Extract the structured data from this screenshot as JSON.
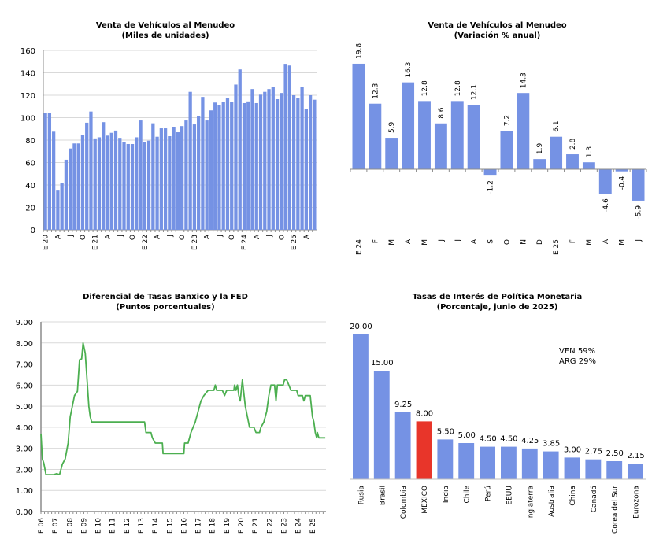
{
  "chart_data": [
    {
      "id": "ventas_nivel",
      "type": "bar",
      "title": "Venta de Vehículos al Menudeo",
      "subtitle": "(Miles de unidades)",
      "xlabel": "",
      "ylabel": "",
      "ylim": [
        0,
        160
      ],
      "yticks": [
        0,
        20,
        40,
        60,
        80,
        100,
        120,
        140,
        160
      ],
      "grid": true,
      "color": "#7592E4",
      "x_tick_labels": [
        {
          "index": 0,
          "label": "E 20"
        },
        {
          "index": 3,
          "label": "A"
        },
        {
          "index": 6,
          "label": "J"
        },
        {
          "index": 9,
          "label": "O"
        },
        {
          "index": 12,
          "label": "E 21"
        },
        {
          "index": 15,
          "label": "A"
        },
        {
          "index": 18,
          "label": "J"
        },
        {
          "index": 21,
          "label": "O"
        },
        {
          "index": 24,
          "label": "E 22"
        },
        {
          "index": 27,
          "label": "A"
        },
        {
          "index": 30,
          "label": "J"
        },
        {
          "index": 33,
          "label": "O"
        },
        {
          "index": 36,
          "label": "E 23"
        },
        {
          "index": 39,
          "label": "A"
        },
        {
          "index": 42,
          "label": "J"
        },
        {
          "index": 45,
          "label": "O"
        },
        {
          "index": 48,
          "label": "E 24"
        },
        {
          "index": 51,
          "label": "A"
        },
        {
          "index": 54,
          "label": "J"
        },
        {
          "index": 57,
          "label": "O"
        },
        {
          "index": 60,
          "label": "E 25"
        },
        {
          "index": 63,
          "label": "A"
        }
      ],
      "values": [
        104.5,
        104,
        87.5,
        35,
        41.5,
        62.5,
        72.5,
        77,
        77,
        84.5,
        95.5,
        105.5,
        81.5,
        82.5,
        96,
        84,
        86.5,
        88.5,
        82,
        78,
        76.5,
        76.5,
        82.5,
        97.5,
        78.5,
        79.5,
        95,
        83,
        90.5,
        90.5,
        83.5,
        91.5,
        87,
        92.5,
        97.5,
        123,
        94,
        101.5,
        118.5,
        97.5,
        106.5,
        113.5,
        111,
        114,
        117.5,
        114,
        129.5,
        143,
        113,
        114.5,
        125.5,
        113,
        120.5,
        123,
        125.5,
        127.5,
        116.5,
        122,
        148,
        146.5,
        120,
        117.5,
        127.5,
        108,
        120,
        116
      ]
    },
    {
      "id": "ventas_variacion",
      "type": "bar",
      "title": "Venta de Vehículos al Menudeo",
      "subtitle": "(Variación % anual)",
      "xlabel": "",
      "ylabel": "",
      "color": "#7592E4",
      "categories": [
        "E 24",
        "F",
        "M",
        "A",
        "M",
        "J",
        "J",
        "A",
        "S",
        "O",
        "N",
        "D",
        "E 25",
        "F",
        "M",
        "A",
        "M",
        "J"
      ],
      "values": [
        19.8,
        12.3,
        5.9,
        16.3,
        12.8,
        8.6,
        12.8,
        12.1,
        -1.2,
        7.2,
        14.3,
        1.9,
        6.1,
        2.8,
        1.3,
        -4.6,
        -0.4,
        -5.9
      ],
      "data_labels": [
        "19.8",
        "12.3",
        "5.9",
        "16.3",
        "12.8",
        "8.6",
        "12.8",
        "12.1",
        "-1.2",
        "7.2",
        "14.3",
        "1.9",
        "6.1",
        "2.8",
        "1.3",
        "-4.6",
        "-0.4",
        "-5.9"
      ],
      "ylim": [
        -7,
        22
      ],
      "grid": false
    },
    {
      "id": "diferencial",
      "type": "line",
      "title": "Diferencial de Tasas Banxico y la FED",
      "subtitle": "(Puntos porcentuales)",
      "xlabel": "",
      "ylabel": "",
      "ylim": [
        0,
        9
      ],
      "yticks": [
        "0.00",
        "1.00",
        "2.00",
        "3.00",
        "4.00",
        "5.00",
        "6.00",
        "7.00",
        "8.00",
        "9.00"
      ],
      "xlim": [
        2006,
        2025.95
      ],
      "x_tick_labels": [
        "E 06",
        "E 07",
        "E 08",
        "E 09",
        "E 10",
        "E 11",
        "E 12",
        "E 13",
        "E 14",
        "E 15",
        "E 16",
        "E 17",
        "E 18",
        "E 19",
        "E 20",
        "E 21",
        "E 22",
        "E 23",
        "E 24",
        "E 25"
      ],
      "grid": true,
      "color": "#4CAF50",
      "series": [
        {
          "name": "Diferencial",
          "x": [
            2006.0,
            2006.1,
            2006.2,
            2006.35,
            2006.9,
            2007.1,
            2007.3,
            2007.5,
            2007.7,
            2007.9,
            2008.05,
            2008.2,
            2008.35,
            2008.55,
            2008.7,
            2008.85,
            2008.95,
            2009.1,
            2009.2,
            2009.35,
            2009.45,
            2009.55,
            2013.25,
            2013.35,
            2013.7,
            2013.8,
            2014.0,
            2014.5,
            2014.55,
            2016.0,
            2016.05,
            2016.3,
            2016.5,
            2016.8,
            2017.0,
            2017.2,
            2017.4,
            2017.7,
            2018.1,
            2018.2,
            2018.3,
            2018.7,
            2018.85,
            2019.0,
            2019.5,
            2019.55,
            2019.65,
            2019.75,
            2019.85,
            2019.95,
            2020.1,
            2020.3,
            2020.45,
            2020.6,
            2020.9,
            2021.05,
            2021.3,
            2021.4,
            2021.6,
            2021.8,
            2021.95,
            2022.1,
            2022.35,
            2022.45,
            2022.55,
            2022.95,
            2023.05,
            2023.2,
            2023.35,
            2023.5,
            2023.9,
            2024.0,
            2024.3,
            2024.4,
            2024.5,
            2024.85,
            2025.0,
            2025.1,
            2025.2,
            2025.3,
            2025.35,
            2025.45,
            2025.9
          ],
          "values": [
            3.7,
            2.5,
            2.3,
            1.75,
            1.75,
            1.8,
            1.75,
            2.25,
            2.5,
            3.25,
            4.5,
            5.0,
            5.5,
            5.7,
            7.2,
            7.25,
            8.0,
            7.5,
            6.5,
            5.0,
            4.5,
            4.25,
            4.25,
            3.75,
            3.75,
            3.5,
            3.25,
            3.25,
            2.75,
            2.75,
            3.25,
            3.25,
            3.75,
            4.25,
            4.75,
            5.25,
            5.5,
            5.75,
            5.75,
            6.0,
            5.75,
            5.75,
            5.5,
            5.75,
            5.75,
            6.0,
            5.75,
            6.0,
            5.5,
            5.25,
            6.25,
            5.0,
            4.5,
            4.0,
            4.0,
            3.75,
            3.75,
            4.0,
            4.25,
            4.75,
            5.5,
            6.0,
            6.0,
            5.25,
            6.0,
            6.0,
            6.25,
            6.25,
            6.0,
            5.75,
            5.75,
            5.5,
            5.5,
            5.25,
            5.5,
            5.5,
            4.5,
            4.25,
            3.75,
            3.5,
            3.75,
            3.5,
            3.5
          ]
        }
      ]
    },
    {
      "id": "tasas_politica",
      "type": "bar",
      "title": "Tasas de Interés de Política Monetaria",
      "subtitle": "(Porcentaje, junio de 2025)",
      "xlabel": "",
      "ylabel": "",
      "categories": [
        "Rusia",
        "Brasil",
        "Colombia",
        "MEXICO",
        "India",
        "Chile",
        "Perú",
        "EEUU",
        "Inglaterra",
        "Australia",
        "China",
        "Canadá",
        "Corea del Sur",
        "Eurozona"
      ],
      "values": [
        20.0,
        15.0,
        9.25,
        8.0,
        5.5,
        5.0,
        4.5,
        4.5,
        4.25,
        3.85,
        3.0,
        2.75,
        2.5,
        2.15
      ],
      "data_labels": [
        "20.00",
        "15.00",
        "9.25",
        "8.00",
        "5.50",
        "5.00",
        "4.50",
        "4.50",
        "4.25",
        "3.85",
        "3.00",
        "2.75",
        "2.50",
        "2.15"
      ],
      "highlight_category": "MEXICO",
      "color": "#7592E4",
      "highlight_color": "#E8352A",
      "ylim": [
        0,
        20
      ],
      "grid": false,
      "annotations": [
        "VEN 59%",
        "ARG 29%"
      ]
    }
  ]
}
